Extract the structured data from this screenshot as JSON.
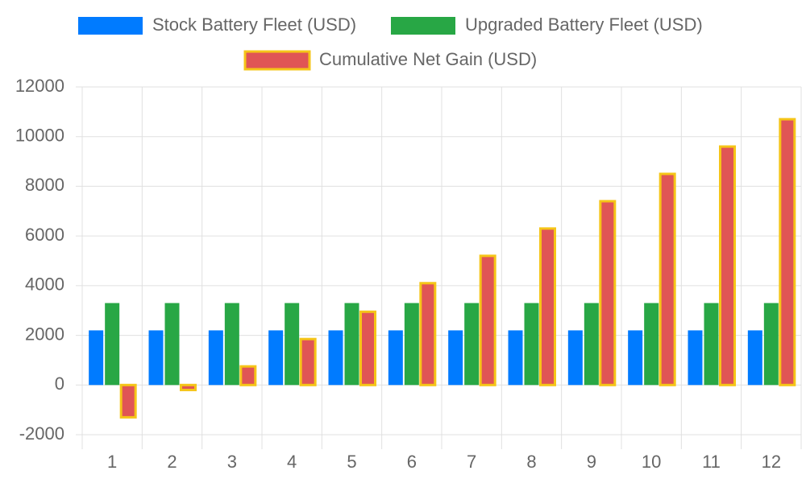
{
  "chart_data": {
    "type": "bar",
    "categories": [
      "1",
      "2",
      "3",
      "4",
      "5",
      "6",
      "7",
      "8",
      "9",
      "10",
      "11",
      "12"
    ],
    "series": [
      {
        "name": "Stock Battery Fleet (USD)",
        "color": "#007bff",
        "values": [
          2200,
          2200,
          2200,
          2200,
          2200,
          2200,
          2200,
          2200,
          2200,
          2200,
          2200,
          2200
        ]
      },
      {
        "name": "Upgraded Battery Fleet (USD)",
        "color": "#28a745",
        "values": [
          3300,
          3300,
          3300,
          3300,
          3300,
          3300,
          3300,
          3300,
          3300,
          3300,
          3300,
          3300
        ]
      },
      {
        "name": "Cumulative Net Gain (USD)",
        "color": "#e05555",
        "border_color": "#f5c518",
        "values": [
          -1300,
          -200,
          750,
          1850,
          2950,
          4100,
          5200,
          6300,
          7400,
          8500,
          9600,
          10700
        ]
      }
    ],
    "ylim": [
      -2000,
      12000
    ],
    "yticks": [
      -2000,
      0,
      2000,
      4000,
      6000,
      8000,
      10000,
      12000
    ],
    "grid": true
  }
}
